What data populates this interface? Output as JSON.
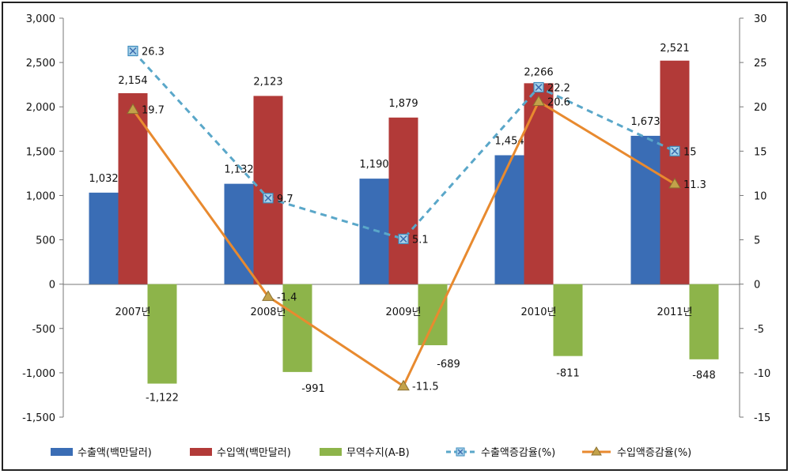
{
  "chart_data": {
    "type": "bar",
    "categories": [
      "2007년",
      "2008년",
      "2009년",
      "2010년",
      "2011년"
    ],
    "series": [
      {
        "name": "수출액(백만달러)",
        "kind": "bar",
        "axis": "left",
        "color": "#3a6db5",
        "values": [
          1032,
          1132,
          1190,
          1454,
          1673
        ],
        "labels": [
          "1,032",
          "1,132",
          "1,190",
          "1,454",
          "1,673"
        ]
      },
      {
        "name": "수입액(백만달러)",
        "kind": "bar",
        "axis": "left",
        "color": "#b23a38",
        "values": [
          2154,
          2123,
          1879,
          2266,
          2521
        ],
        "labels": [
          "2,154",
          "2,123",
          "1,879",
          "2,266",
          "2,521"
        ]
      },
      {
        "name": "무역수지(A-B)",
        "kind": "bar",
        "axis": "left",
        "color": "#8db44a",
        "values": [
          -1122,
          -991,
          -689,
          -811,
          -848
        ],
        "labels": [
          "-1,122",
          "-991",
          "-689",
          "-811",
          "-848"
        ]
      },
      {
        "name": "수출액증감율(%)",
        "kind": "line",
        "axis": "right",
        "color": "#5aa7c9",
        "values": [
          26.3,
          9.7,
          5.1,
          22.2,
          15
        ],
        "labels": [
          "26.3",
          "9.7",
          "5.1",
          "22.2",
          "15"
        ]
      },
      {
        "name": "수입액증감율(%)",
        "kind": "line",
        "axis": "right",
        "color": "#e88a2f",
        "values": [
          19.7,
          -1.4,
          -11.5,
          20.6,
          11.3
        ],
        "labels": [
          "19.7",
          "-1.4",
          "-11.5",
          "20.6",
          "11.3"
        ]
      }
    ],
    "y_left": {
      "min": -1500,
      "max": 3000,
      "step": 500,
      "ticks": [
        "3,000",
        "2,500",
        "2,000",
        "1,500",
        "1,000",
        "500",
        "0",
        "-500",
        "-1,000",
        "-1,500"
      ]
    },
    "y_right": {
      "min": -15,
      "max": 30,
      "step": 5,
      "ticks": [
        "30",
        "25",
        "20",
        "15",
        "10",
        "5",
        "0",
        "-5",
        "-10",
        "-15"
      ]
    },
    "grid": false,
    "legend_position": "bottom"
  }
}
